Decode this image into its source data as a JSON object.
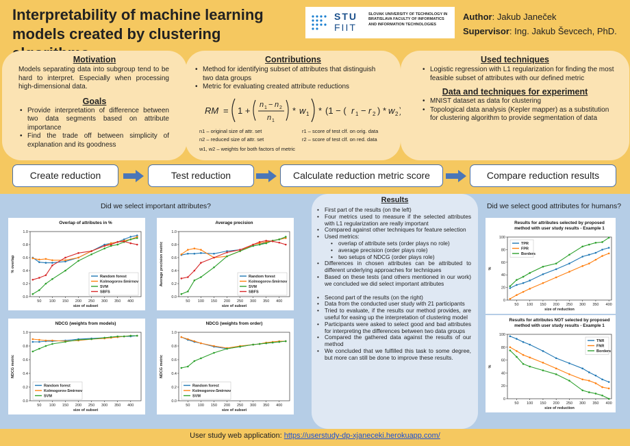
{
  "header": {
    "title": "Interpretability of machine learning models created by clustering algorithms",
    "logo_stu": "STU",
    "logo_fiit": "FIIT",
    "logo_university": "SLOVAK UNIVERSITY OF TECHNOLOGY IN BRATISLAVA FACULTY OF INFORMATICS AND INFORMATION TECHNOLOGIES",
    "author_label": "Author",
    "author_name": ": Jakub Janeček",
    "supervisor_label": "Supervisor",
    "supervisor_name": ": Ing. Jakub Ševcech, PhD."
  },
  "motivation": {
    "title": "Motivation",
    "text": "Models separating data into subgroup tend to be hard to interpret. Especially when processing high-dimensional data."
  },
  "goals": {
    "title": "Goals",
    "items": [
      "Provide interpretation of difference between two data segments based on attribute importance",
      "Find the trade off between simplicity of explanation and its goodness"
    ]
  },
  "contributions": {
    "title": "Contributions",
    "items": [
      "Method for identifying subset of attributes that distinguish two data groups",
      "Metric for evaluating created attribute reductions"
    ],
    "formula": "RM = (1 + ((n1 − n2) / n1) * w1) * (1 − (r1 − r2) * w2)",
    "legend": [
      "n1 – original size of attr. set",
      "r1 – score of test clf. on orig. data",
      "n2 – reduced size of attr. set",
      "r2 – score of test clf. on red. data",
      "w1, w2 – weights for both factors of metric"
    ]
  },
  "used_techniques": {
    "title": "Used techniques",
    "items": [
      "Logistic regression with L1 regularization for finding the most feasible subset of attributes with our defined metric"
    ]
  },
  "data_techniques": {
    "title": "Data and techniques for experiment",
    "items": [
      "MNIST dataset as data for clustering",
      "Topological data analysis (Kepler mapper) as a substitution for clustering algorithm to provide segmentation of data"
    ]
  },
  "pipeline": {
    "steps": [
      "Create reduction",
      "Test reduction",
      "Calculate reduction metric score",
      "Compare reduction results"
    ]
  },
  "left_section": {
    "heading": "Did we select important attributes?"
  },
  "right_section": {
    "heading": "Did we select good attributes for humans?"
  },
  "results": {
    "title": "Results",
    "items_part1": [
      "First part of the results (on the left)",
      "Four metrics used to measure if the selected attributes with L1 regularization are really important",
      "Compared against other techniques for feature selection",
      "Used metrics:"
    ],
    "metrics": [
      "overlap of attribute sets (order plays no role)",
      "average precision (order plays role)",
      "two setups of NDCG (order plays role)"
    ],
    "items_part1b": [
      "Differences in chosen attributes can be attributed to different underlying approaches for techniques",
      "Based on these tests (and others mentioned in our work) we concluded we did select important attributes"
    ],
    "items_part2": [
      "Second part of the results (on the right)",
      "Data from the conducted user study with 21 participants",
      "Tried to evaluate, if the results our method provides, are useful for easing up the interpretation of clustering model",
      "Participants were asked to select good and bad attributes for interpreting the differences between two data groups",
      "Compared the gathered data against the results of our method",
      "We concluded that we fulfilled this task to some degree, but more can still be done to improve these results."
    ]
  },
  "footer": {
    "label": "User study web application: ",
    "link": "https://userstudy-dp-xjaneceki.herokuapp.com/"
  },
  "colors": {
    "blue": "#1f77b4",
    "orange": "#ff7f0e",
    "green": "#2ca02c",
    "red": "#d62728",
    "header_bg": "#f5c860",
    "panel_bg": "#fbe3b3",
    "results_bg": "#b5cde6"
  },
  "chart_data": [
    {
      "type": "line",
      "title": "Overlap of attributes in %",
      "xlabel": "size of subset",
      "ylabel": "% overlap",
      "x": [
        25,
        50,
        75,
        100,
        150,
        200,
        250,
        300,
        325,
        350,
        375,
        400,
        425
      ],
      "xticks": [
        50,
        100,
        150,
        200,
        250,
        300,
        350,
        400
      ],
      "xlim": [
        15,
        440
      ],
      "ylim": [
        0.0,
        1.0
      ],
      "yticks": [
        0.0,
        0.2,
        0.4,
        0.6,
        0.8,
        1.0
      ],
      "legend_position": "lower right",
      "series": [
        {
          "name": "Random forest",
          "color": "#1f77b4",
          "values": [
            0.6,
            0.53,
            0.52,
            0.52,
            0.54,
            0.6,
            0.7,
            0.8,
            0.82,
            0.84,
            0.88,
            0.92,
            0.94
          ]
        },
        {
          "name": "Kolmogorov-Smirnov",
          "color": "#ff7f0e",
          "values": [
            0.59,
            0.57,
            0.58,
            0.56,
            0.56,
            0.6,
            0.7,
            0.78,
            0.82,
            0.84,
            0.86,
            0.88,
            0.92
          ]
        },
        {
          "name": "SVM",
          "color": "#2ca02c",
          "values": [
            0.04,
            0.1,
            0.2,
            0.27,
            0.4,
            0.55,
            0.65,
            0.74,
            0.78,
            0.8,
            0.84,
            0.88,
            0.9
          ]
        },
        {
          "name": "SBFS",
          "color": "#d62728",
          "values": [
            0.26,
            0.29,
            0.33,
            0.48,
            0.6,
            0.67,
            0.7,
            0.78,
            0.8,
            0.84,
            0.85,
            0.82,
            0.8
          ]
        }
      ]
    },
    {
      "type": "line",
      "title": "Average precision",
      "xlabel": "size of subset",
      "ylabel": "Average precision metric",
      "x": [
        25,
        50,
        75,
        100,
        150,
        200,
        250,
        300,
        325,
        350,
        375,
        400,
        425
      ],
      "xticks": [
        50,
        100,
        150,
        200,
        250,
        300,
        350,
        400
      ],
      "xlim": [
        15,
        440
      ],
      "ylim": [
        0.0,
        1.0
      ],
      "yticks": [
        0.0,
        0.2,
        0.4,
        0.6,
        0.8,
        1.0
      ],
      "legend_position": "lower right",
      "series": [
        {
          "name": "Random forest",
          "color": "#1f77b4",
          "values": [
            0.64,
            0.66,
            0.66,
            0.67,
            0.66,
            0.7,
            0.72,
            0.78,
            0.8,
            0.84,
            0.86,
            0.88,
            0.9
          ]
        },
        {
          "name": "Kolmogorov-Smirnov",
          "color": "#ff7f0e",
          "values": [
            0.65,
            0.72,
            0.74,
            0.72,
            0.6,
            0.62,
            0.7,
            0.8,
            0.82,
            0.84,
            0.86,
            0.88,
            0.9
          ]
        },
        {
          "name": "SVM",
          "color": "#2ca02c",
          "values": [
            0.04,
            0.08,
            0.25,
            0.3,
            0.45,
            0.62,
            0.7,
            0.78,
            0.8,
            0.82,
            0.86,
            0.88,
            0.92
          ]
        },
        {
          "name": "SBFS",
          "color": "#d62728",
          "values": [
            0.28,
            0.3,
            0.4,
            0.52,
            0.6,
            0.68,
            0.72,
            0.8,
            0.84,
            0.86,
            0.85,
            0.83,
            0.8
          ]
        }
      ]
    },
    {
      "type": "line",
      "title": "NDCG (weights from models)",
      "xlabel": "size of subset",
      "ylabel": "NDCG metric",
      "x": [
        25,
        50,
        75,
        100,
        150,
        200,
        250,
        300,
        325,
        350,
        375,
        400,
        425
      ],
      "xticks": [
        50,
        100,
        150,
        200,
        250,
        300,
        350,
        400
      ],
      "xlim": [
        15,
        440
      ],
      "ylim": [
        0.0,
        1.0
      ],
      "yticks": [
        0.0,
        0.2,
        0.4,
        0.6,
        0.8,
        1.0
      ],
      "legend_position": "lower left",
      "series": [
        {
          "name": "Random forest",
          "color": "#1f77b4",
          "values": [
            0.86,
            0.86,
            0.87,
            0.87,
            0.88,
            0.9,
            0.91,
            0.92,
            0.93,
            0.93,
            0.94,
            0.94,
            0.95
          ]
        },
        {
          "name": "Kolmogorov-Smirnov",
          "color": "#ff7f0e",
          "values": [
            0.9,
            0.89,
            0.88,
            0.88,
            0.87,
            0.88,
            0.9,
            0.91,
            0.92,
            0.93,
            0.94,
            0.95,
            0.95
          ]
        },
        {
          "name": "SVM",
          "color": "#2ca02c",
          "values": [
            0.72,
            0.76,
            0.8,
            0.83,
            0.86,
            0.89,
            0.9,
            0.92,
            0.93,
            0.94,
            0.94,
            0.95,
            0.95
          ]
        }
      ]
    },
    {
      "type": "line",
      "title": "NDCG (weights from order)",
      "xlabel": "size of subset",
      "ylabel": "NDCG metric",
      "x": [
        25,
        50,
        75,
        100,
        150,
        200,
        250,
        300,
        325,
        350,
        375,
        400,
        425
      ],
      "xticks": [
        50,
        100,
        150,
        200,
        250,
        300,
        350,
        400
      ],
      "xlim": [
        15,
        440
      ],
      "ylim": [
        0.0,
        1.0
      ],
      "yticks": [
        0.0,
        0.2,
        0.4,
        0.6,
        0.8,
        1.0
      ],
      "legend_position": "lower left",
      "series": [
        {
          "name": "Random forest",
          "color": "#1f77b4",
          "values": [
            0.93,
            0.89,
            0.86,
            0.84,
            0.79,
            0.76,
            0.79,
            0.82,
            0.83,
            0.84,
            0.85,
            0.86,
            0.87
          ]
        },
        {
          "name": "Kolmogorov-Smirnov",
          "color": "#ff7f0e",
          "values": [
            0.93,
            0.9,
            0.87,
            0.84,
            0.8,
            0.77,
            0.8,
            0.82,
            0.83,
            0.85,
            0.86,
            0.87,
            0.87
          ]
        },
        {
          "name": "SVM",
          "color": "#2ca02c",
          "values": [
            0.48,
            0.5,
            0.58,
            0.62,
            0.7,
            0.76,
            0.79,
            0.82,
            0.83,
            0.84,
            0.85,
            0.86,
            0.87
          ]
        }
      ]
    },
    {
      "type": "line",
      "title": "Results for attributes selected by proposed method with user study results - Example 1",
      "xlabel": "size of reduction",
      "ylabel": "%",
      "x": [
        25,
        50,
        75,
        100,
        150,
        200,
        250,
        300,
        325,
        350,
        375,
        400
      ],
      "xticks": [
        50,
        100,
        150,
        200,
        250,
        300,
        350,
        400
      ],
      "xlim": [
        15,
        410
      ],
      "ylim": [
        0,
        100
      ],
      "yticks": [
        0,
        20,
        40,
        60,
        80,
        100
      ],
      "legend_position": "upper left",
      "series": [
        {
          "name": "TPR",
          "color": "#1f77b4",
          "values": [
            19,
            24,
            27,
            31,
            41,
            49,
            58,
            69,
            72,
            75,
            80,
            83
          ]
        },
        {
          "name": "FPR",
          "color": "#ff7f0e",
          "values": [
            2,
            8,
            13,
            18,
            27,
            36,
            45,
            54,
            58,
            64,
            70,
            74
          ]
        },
        {
          "name": "Borders",
          "color": "#2ca02c",
          "values": [
            22,
            32,
            37,
            43,
            53,
            58,
            72,
            85,
            88,
            91,
            92,
            99
          ]
        }
      ]
    },
    {
      "type": "line",
      "title": "Results for attributes NOT selected by proposed method with user study results - Example 1",
      "xlabel": "size of reduction",
      "ylabel": "%",
      "x": [
        25,
        50,
        75,
        100,
        150,
        200,
        250,
        300,
        325,
        350,
        375,
        400
      ],
      "xticks": [
        50,
        100,
        150,
        200,
        250,
        300,
        350,
        400
      ],
      "xlim": [
        15,
        410
      ],
      "ylim": [
        0,
        100
      ],
      "yticks": [
        0,
        20,
        40,
        60,
        80,
        100
      ],
      "legend_position": "upper right",
      "series": [
        {
          "name": "TNR",
          "color": "#1f77b4",
          "values": [
            97,
            93,
            88,
            84,
            74,
            63,
            55,
            47,
            41,
            36,
            30,
            26
          ]
        },
        {
          "name": "FNR",
          "color": "#ff7f0e",
          "values": [
            80,
            74,
            68,
            64,
            56,
            47,
            38,
            30,
            28,
            24,
            18,
            16
          ]
        },
        {
          "name": "Borders",
          "color": "#2ca02c",
          "values": [
            75,
            65,
            54,
            50,
            44,
            38,
            28,
            13,
            10,
            8,
            5,
            0
          ]
        }
      ]
    }
  ]
}
